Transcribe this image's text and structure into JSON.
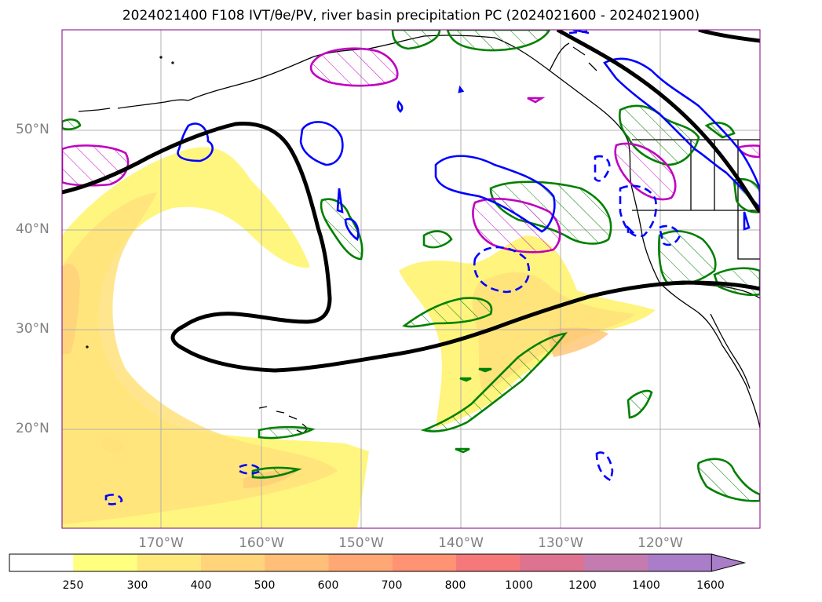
{
  "title": "2024021400 F108 IVT/θe/PV, river basin precipitation PC (2024021600 - 2024021900)",
  "lat_labels": [
    "50°N",
    "40°N",
    "30°N",
    "20°N"
  ],
  "lon_labels": [
    "170°W",
    "160°W",
    "150°W",
    "140°W",
    "130°W",
    "120°W"
  ],
  "colorbar": {
    "labels": [
      "250",
      "300",
      "400",
      "500",
      "600",
      "700",
      "800",
      "1000",
      "1200",
      "1400",
      "1600"
    ],
    "colors": [
      "#ffffff",
      "#ffff80",
      "#ffe97d",
      "#ffd47a",
      "#ffbf78",
      "#ffa875",
      "#ff9373",
      "#f5787a",
      "#dd7390",
      "#c47cb0",
      "#a97dc8"
    ]
  },
  "contour_colors": {
    "ivt_fill": "#fff47d",
    "theta_e": "#000000",
    "pv_positive": "#0000ff",
    "precip_green": "#008000",
    "precip_magenta": "#c000c0"
  }
}
